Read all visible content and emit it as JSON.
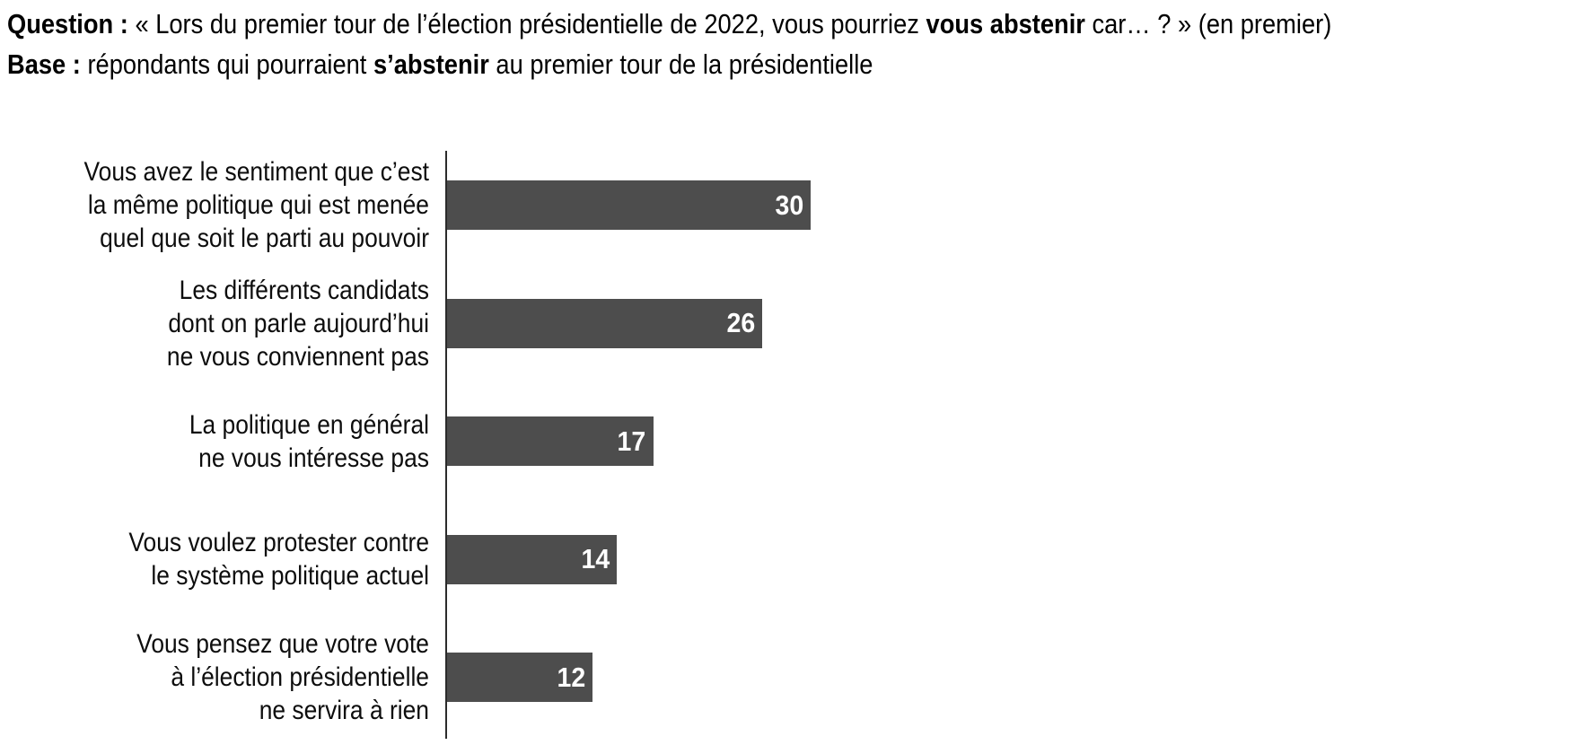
{
  "header": {
    "question_label": "Question :",
    "question_text_before_bold": " « Lors du premier tour de l’élection présidentielle de 2022, vous pourriez ",
    "question_bold": "vous abstenir",
    "question_text_after_bold": " car… ? » (en premier)",
    "base_label": "Base :",
    "base_text_before_bold": " répondants qui pourraient ",
    "base_bold": "s’abstenir",
    "base_text_after_bold": " au premier tour de la présidentielle"
  },
  "chart_data": {
    "type": "bar",
    "orientation": "horizontal",
    "title": "Question : « Lors du premier tour de l’élection présidentielle de 2022, vous pourriez vous abstenir car… ? » (en premier)",
    "subtitle": "Base : répondants qui pourraient s’abstenir au premier tour de la présidentielle",
    "categories": [
      "Vous avez le sentiment que c’est la même politique qui est menée quel que soit le parti au pouvoir",
      "Les différents candidats dont on parle aujourd’hui ne vous conviennent pas",
      "La politique en général ne vous intéresse pas",
      "Vous voulez protester contre le système politique actuel",
      "Vous pensez que votre vote à l’élection présidentielle ne servira à rien"
    ],
    "category_lines": [
      [
        "Vous avez le sentiment que c’est",
        "la même politique qui est menée",
        "quel que soit le parti au pouvoir"
      ],
      [
        "Les différents candidats",
        "dont on parle aujourd’hui",
        "ne vous conviennent pas"
      ],
      [
        "La politique en général",
        "ne vous intéresse pas"
      ],
      [
        "Vous voulez protester contre",
        "le système politique actuel"
      ],
      [
        "Vous pensez que votre vote",
        "à l’élection présidentielle",
        "ne servira à rien"
      ]
    ],
    "values": [
      30,
      26,
      17,
      14,
      12
    ],
    "value_labels": [
      "30",
      "26",
      "17",
      "14",
      "12"
    ],
    "xlabel": "",
    "ylabel": "",
    "grid": false,
    "legend": false,
    "bar_color": "#4d4d4d",
    "value_label_color": "#ffffff",
    "axis_line_color": "#2b2b2b",
    "text_color": "#000000"
  }
}
